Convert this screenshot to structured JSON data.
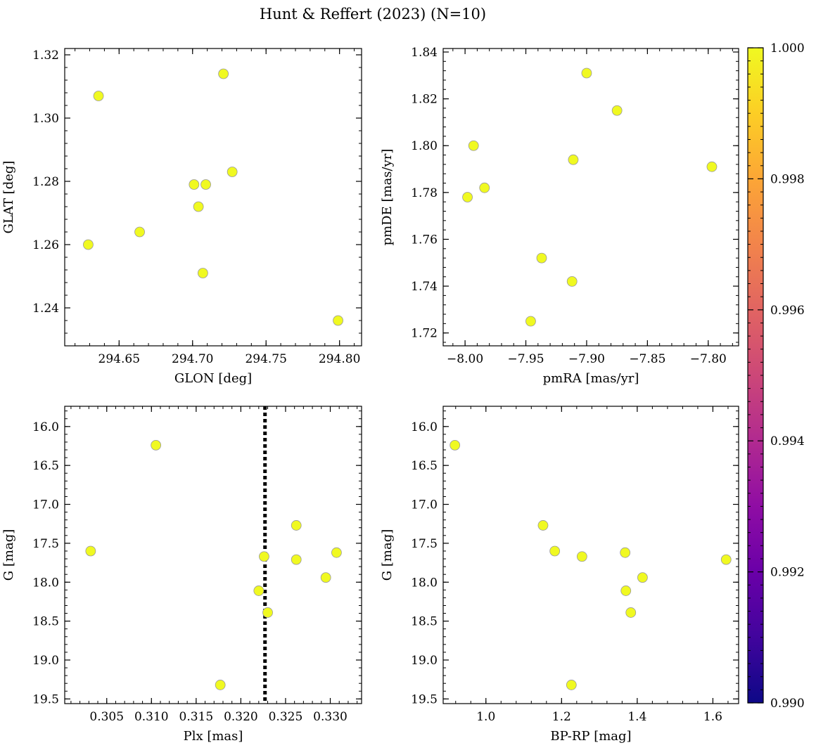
{
  "chart_data": {
    "title": "Hunt & Reffert (2023) (N=10)",
    "colorbar": {
      "range": [
        0.99,
        1.0
      ],
      "tick_values": [
        0.99,
        0.992,
        0.994,
        0.996,
        0.998,
        1.0
      ],
      "tick_labels": [
        "0.990",
        "0.992",
        "0.994",
        "0.996",
        "0.998",
        "1.000"
      ],
      "colormap": "plasma"
    },
    "marker": {
      "fill": "#f0f921",
      "edge": "#999999",
      "value": 1.0
    },
    "panels": [
      {
        "id": "glon-glat",
        "type": "scatter",
        "xlabel": "GLON [deg]",
        "ylabel": "GLAT [deg]",
        "xlim": [
          294.613,
          294.815
        ],
        "ylim": [
          1.228,
          1.322
        ],
        "y_inverted": false,
        "xticks": [
          294.65,
          294.7,
          294.75,
          294.8
        ],
        "xtick_labels": [
          "294.65",
          "294.70",
          "294.75",
          "294.80"
        ],
        "yticks": [
          1.24,
          1.26,
          1.28,
          1.3,
          1.32
        ],
        "ytick_labels": [
          "1.24",
          "1.26",
          "1.28",
          "1.30",
          "1.32"
        ],
        "x": [
          294.629,
          294.636,
          294.664,
          294.701,
          294.704,
          294.707,
          294.709,
          294.721,
          294.727,
          294.799
        ],
        "y": [
          1.26,
          1.307,
          1.264,
          1.279,
          1.272,
          1.251,
          1.279,
          1.314,
          1.283,
          1.236
        ]
      },
      {
        "id": "pmra-pmde",
        "type": "scatter",
        "xlabel": "pmRA [mas/yr]",
        "ylabel": "pmDE [mas/yr]",
        "xlim": [
          -8.018,
          -7.775
        ],
        "ylim": [
          1.7145,
          1.8415
        ],
        "y_inverted": false,
        "xticks": [
          -8.0,
          -7.95,
          -7.9,
          -7.85,
          -7.8
        ],
        "xtick_labels": [
          "−8.00",
          "−7.95",
          "−7.90",
          "−7.85",
          "−7.80"
        ],
        "yticks": [
          1.72,
          1.74,
          1.76,
          1.78,
          1.8,
          1.82,
          1.84
        ],
        "ytick_labels": [
          "1.72",
          "1.74",
          "1.76",
          "1.78",
          "1.80",
          "1.82",
          "1.84"
        ],
        "x": [
          -7.998,
          -7.993,
          -7.984,
          -7.946,
          -7.937,
          -7.912,
          -7.911,
          -7.9,
          -7.875,
          -7.797
        ],
        "y": [
          1.778,
          1.8,
          1.782,
          1.725,
          1.752,
          1.742,
          1.794,
          1.831,
          1.815,
          1.791
        ]
      },
      {
        "id": "plx-g",
        "type": "scatter",
        "xlabel": "Plx [mas]",
        "ylabel": "G [mag]",
        "xlim": [
          0.3003,
          0.3335
        ],
        "ylim": [
          19.56,
          15.74
        ],
        "y_inverted": true,
        "xticks": [
          0.305,
          0.31,
          0.315,
          0.32,
          0.325,
          0.33
        ],
        "xtick_labels": [
          "0.305",
          "0.310",
          "0.315",
          "0.320",
          "0.325",
          "0.330"
        ],
        "yticks": [
          16.0,
          16.5,
          17.0,
          17.5,
          18.0,
          18.5,
          19.0,
          19.5
        ],
        "ytick_labels": [
          "16.0",
          "16.5",
          "17.0",
          "17.5",
          "18.0",
          "18.5",
          "19.0",
          "19.5"
        ],
        "x": [
          0.3032,
          0.3105,
          0.3177,
          0.322,
          0.3226,
          0.323,
          0.3262,
          0.3262,
          0.3295,
          0.3307
        ],
        "y": [
          17.6,
          16.24,
          19.32,
          18.11,
          17.67,
          18.39,
          17.27,
          17.71,
          17.94,
          17.62
        ],
        "vline": {
          "x": 0.3227,
          "style": "dotted"
        }
      },
      {
        "id": "bprp-g",
        "type": "scatter",
        "xlabel": "BP-RP [mag]",
        "ylabel": "G [mag]",
        "xlim": [
          0.887,
          1.668
        ],
        "ylim": [
          19.56,
          15.74
        ],
        "y_inverted": true,
        "xticks": [
          1.0,
          1.2,
          1.4,
          1.6
        ],
        "xtick_labels": [
          "1.0",
          "1.2",
          "1.4",
          "1.6"
        ],
        "yticks": [
          16.0,
          16.5,
          17.0,
          17.5,
          18.0,
          18.5,
          19.0,
          19.5
        ],
        "ytick_labels": [
          "16.0",
          "16.5",
          "17.0",
          "17.5",
          "18.0",
          "18.5",
          "19.0",
          "19.5"
        ],
        "x": [
          0.918,
          1.151,
          1.182,
          1.226,
          1.254,
          1.368,
          1.37,
          1.383,
          1.414,
          1.635
        ],
        "y": [
          16.24,
          17.27,
          17.6,
          19.32,
          17.67,
          17.62,
          18.11,
          18.39,
          17.94,
          17.71
        ]
      }
    ]
  }
}
